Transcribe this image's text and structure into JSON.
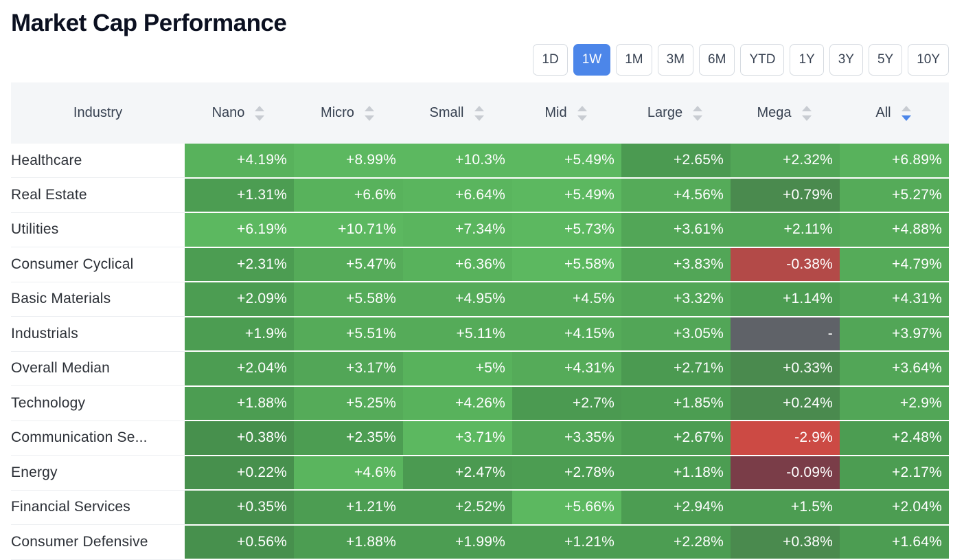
{
  "title": "Market Cap Performance",
  "periods": {
    "items": [
      "1D",
      "1W",
      "1M",
      "3M",
      "6M",
      "YTD",
      "1Y",
      "3Y",
      "5Y",
      "10Y"
    ],
    "active": "1W"
  },
  "columns": {
    "industry": "Industry",
    "caps": [
      "Nano",
      "Micro",
      "Small",
      "Mid",
      "Large",
      "Mega",
      "All"
    ],
    "sorted": "All",
    "sort_direction": "desc"
  },
  "colors": {
    "header_bg": "#f4f6f8",
    "active_button": "#4c86e9",
    "sort_active": "#4c86e9",
    "sort_inactive": "#c8ccd2"
  },
  "rows": [
    {
      "industry": "Healthcare",
      "values": [
        "+4.19%",
        "+8.99%",
        "+10.3%",
        "+5.49%",
        "+2.65%",
        "+2.32%",
        "+6.89%"
      ],
      "colors": [
        "#58b25c",
        "#5cb860",
        "#5cb860",
        "#5cb860",
        "#4b9a51",
        "#52a657",
        "#58b25c"
      ]
    },
    {
      "industry": "Real Estate",
      "values": [
        "+1.31%",
        "+6.6%",
        "+6.64%",
        "+5.49%",
        "+4.56%",
        "+0.79%",
        "+5.27%"
      ],
      "colors": [
        "#4c9d52",
        "#58b25c",
        "#5ab55e",
        "#5cb860",
        "#55ab59",
        "#4a8a4e",
        "#55ab59"
      ]
    },
    {
      "industry": "Utilities",
      "values": [
        "+6.19%",
        "+10.71%",
        "+7.34%",
        "+5.73%",
        "+3.61%",
        "+2.11%",
        "+4.88%"
      ],
      "colors": [
        "#5cb860",
        "#5cb860",
        "#5ab55e",
        "#5cb860",
        "#52a657",
        "#52a657",
        "#55ab59"
      ]
    },
    {
      "industry": "Consumer Cyclical",
      "values": [
        "+2.31%",
        "+5.47%",
        "+6.36%",
        "+5.58%",
        "+3.83%",
        "-0.38%",
        "+4.79%"
      ],
      "colors": [
        "#4c9d52",
        "#55ab59",
        "#58b25c",
        "#5cb860",
        "#52a657",
        "#b34a48",
        "#55ab59"
      ]
    },
    {
      "industry": "Basic Materials",
      "values": [
        "+2.09%",
        "+5.58%",
        "+4.95%",
        "+4.5%",
        "+3.32%",
        "+1.14%",
        "+4.31%"
      ],
      "colors": [
        "#4c9d52",
        "#55ab59",
        "#55ab59",
        "#55ab59",
        "#52a657",
        "#4c9d52",
        "#52a657"
      ]
    },
    {
      "industry": "Industrials",
      "values": [
        "+1.9%",
        "+5.51%",
        "+5.11%",
        "+4.15%",
        "+3.05%",
        "-",
        "+3.97%"
      ],
      "colors": [
        "#4c9d52",
        "#55ab59",
        "#55ab59",
        "#55ab59",
        "#52a657",
        "#5f6268",
        "#52a657"
      ]
    },
    {
      "industry": "Overall Median",
      "values": [
        "+2.04%",
        "+3.17%",
        "+5%",
        "+4.31%",
        "+2.71%",
        "+0.33%",
        "+3.64%"
      ],
      "colors": [
        "#4c9d52",
        "#52a657",
        "#58b25c",
        "#55ab59",
        "#4b9a51",
        "#4a8a4e",
        "#52a657"
      ]
    },
    {
      "industry": "Technology",
      "values": [
        "+1.88%",
        "+5.25%",
        "+4.26%",
        "+2.7%",
        "+1.85%",
        "+0.24%",
        "+2.9%"
      ],
      "colors": [
        "#4c9d52",
        "#55ab59",
        "#58b25c",
        "#4b9a51",
        "#4c9d52",
        "#4a8a4e",
        "#52a657"
      ]
    },
    {
      "industry": "Communication Se...",
      "values": [
        "+0.38%",
        "+2.35%",
        "+3.71%",
        "+3.35%",
        "+2.67%",
        "-2.9%",
        "+2.48%"
      ],
      "colors": [
        "#47904d",
        "#4c9d52",
        "#5cb860",
        "#52a657",
        "#4c9d52",
        "#cc4a44",
        "#4c9d52"
      ]
    },
    {
      "industry": "Energy",
      "values": [
        "+0.22%",
        "+4.6%",
        "+2.47%",
        "+2.78%",
        "+1.18%",
        "-0.09%",
        "+2.17%"
      ],
      "colors": [
        "#47904d",
        "#5ab55e",
        "#4b9a51",
        "#4c9d52",
        "#4c9d52",
        "#7a3d48",
        "#4c9d52"
      ]
    },
    {
      "industry": "Financial Services",
      "values": [
        "+0.35%",
        "+1.21%",
        "+2.52%",
        "+5.66%",
        "+2.94%",
        "+1.5%",
        "+2.04%"
      ],
      "colors": [
        "#47904d",
        "#4c9d52",
        "#4c9d52",
        "#5cb860",
        "#4c9d52",
        "#4c9d52",
        "#4c9d52"
      ]
    },
    {
      "industry": "Consumer Defensive",
      "values": [
        "+0.56%",
        "+1.88%",
        "+1.99%",
        "+1.21%",
        "+2.28%",
        "+0.38%",
        "+1.64%"
      ],
      "colors": [
        "#47904d",
        "#4c9d52",
        "#4c9d52",
        "#4c9d52",
        "#4c9d52",
        "#4a8a4e",
        "#4c9d52"
      ]
    }
  ]
}
